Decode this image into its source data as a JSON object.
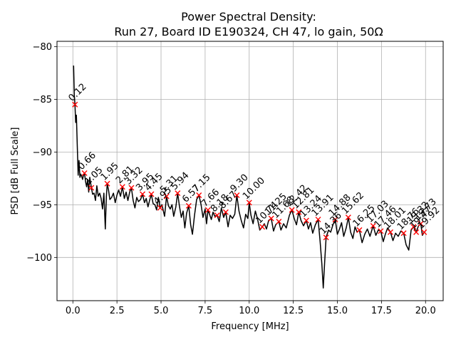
{
  "chart_data": {
    "type": "line",
    "title_line1": "Power Spectral Density:",
    "title_line2": "Run 27, Board ID E190324, CH 47, lo gain, 50Ω",
    "xlabel": "Frequency [MHz]",
    "ylabel": "PSD [dB Full Scale]",
    "xlim": [
      -0.9,
      21.0
    ],
    "ylim": [
      -104.1,
      -79.5
    ],
    "x_ticks": [
      0.0,
      2.5,
      5.0,
      7.5,
      10.0,
      12.5,
      15.0,
      17.5,
      20.0
    ],
    "x_tick_labels": [
      "0.0",
      "2.5",
      "5.0",
      "7.5",
      "10.0",
      "12.5",
      "15.0",
      "17.5",
      "20.0"
    ],
    "y_ticks": [
      -80,
      -85,
      -90,
      -95,
      -100
    ],
    "y_tick_labels": [
      "−80",
      "−85",
      "−90",
      "−95",
      "−100"
    ],
    "grid": true,
    "series": [
      {
        "color": "#000000",
        "points": [
          [
            0.04,
            -81.8
          ],
          [
            0.08,
            -84.6
          ],
          [
            0.12,
            -85.5
          ],
          [
            0.16,
            -87.2
          ],
          [
            0.2,
            -86.5
          ],
          [
            0.25,
            -89.5
          ],
          [
            0.3,
            -92.2
          ],
          [
            0.35,
            -90.8
          ],
          [
            0.4,
            -92.4
          ],
          [
            0.45,
            -92.1
          ],
          [
            0.5,
            -92.3
          ],
          [
            0.55,
            -92.6
          ],
          [
            0.6,
            -92.2
          ],
          [
            0.66,
            -92.0
          ],
          [
            0.72,
            -92.8
          ],
          [
            0.78,
            -93.3
          ],
          [
            0.84,
            -92.6
          ],
          [
            0.9,
            -93.8
          ],
          [
            0.96,
            -92.4
          ],
          [
            1.05,
            -93.4
          ],
          [
            1.12,
            -94.0
          ],
          [
            1.2,
            -93.9
          ],
          [
            1.28,
            -94.6
          ],
          [
            1.36,
            -93.2
          ],
          [
            1.44,
            -94.2
          ],
          [
            1.52,
            -93.9
          ],
          [
            1.6,
            -94.4
          ],
          [
            1.68,
            -95.4
          ],
          [
            1.76,
            -93.9
          ],
          [
            1.84,
            -97.3
          ],
          [
            1.9,
            -94.2
          ],
          [
            1.95,
            -93.0
          ],
          [
            2.02,
            -93.6
          ],
          [
            2.1,
            -94.5
          ],
          [
            2.2,
            -94.3
          ],
          [
            2.3,
            -93.9
          ],
          [
            2.4,
            -94.8
          ],
          [
            2.5,
            -94.1
          ],
          [
            2.6,
            -93.6
          ],
          [
            2.7,
            -94.2
          ],
          [
            2.81,
            -93.3
          ],
          [
            2.92,
            -94.4
          ],
          [
            3.02,
            -93.8
          ],
          [
            3.12,
            -94.6
          ],
          [
            3.22,
            -93.8
          ],
          [
            3.32,
            -93.4
          ],
          [
            3.42,
            -94.6
          ],
          [
            3.52,
            -95.3
          ],
          [
            3.62,
            -94.3
          ],
          [
            3.72,
            -94.7
          ],
          [
            3.84,
            -94.5
          ],
          [
            3.95,
            -94.0
          ],
          [
            4.06,
            -94.8
          ],
          [
            4.16,
            -94.4
          ],
          [
            4.26,
            -95.2
          ],
          [
            4.35,
            -94.6
          ],
          [
            4.45,
            -94.0
          ],
          [
            4.55,
            -94.9
          ],
          [
            4.65,
            -95.0
          ],
          [
            4.75,
            -95.5
          ],
          [
            4.85,
            -94.3
          ],
          [
            4.95,
            -95.3
          ],
          [
            5.05,
            -95.0
          ],
          [
            5.2,
            -96.1
          ],
          [
            5.31,
            -94.2
          ],
          [
            5.42,
            -95.1
          ],
          [
            5.52,
            -95.4
          ],
          [
            5.62,
            -95.0
          ],
          [
            5.72,
            -96.1
          ],
          [
            5.84,
            -95.2
          ],
          [
            5.94,
            -93.9
          ],
          [
            6.05,
            -95.2
          ],
          [
            6.15,
            -96.2
          ],
          [
            6.25,
            -95.6
          ],
          [
            6.35,
            -97.2
          ],
          [
            6.45,
            -95.8
          ],
          [
            6.57,
            -95.1
          ],
          [
            6.68,
            -96.9
          ],
          [
            6.78,
            -97.8
          ],
          [
            6.9,
            -96.0
          ],
          [
            7.02,
            -94.5
          ],
          [
            7.15,
            -94.1
          ],
          [
            7.27,
            -95.0
          ],
          [
            7.38,
            -96.2
          ],
          [
            7.5,
            -95.4
          ],
          [
            7.58,
            -96.8
          ],
          [
            7.66,
            -95.5
          ],
          [
            7.75,
            -95.9
          ],
          [
            7.85,
            -96.4
          ],
          [
            7.95,
            -95.7
          ],
          [
            8.05,
            -96.1
          ],
          [
            8.18,
            -96.0
          ],
          [
            8.3,
            -96.6
          ],
          [
            8.42,
            -95.3
          ],
          [
            8.55,
            -96.2
          ],
          [
            8.67,
            -95.7
          ],
          [
            8.8,
            -97.1
          ],
          [
            8.92,
            -96.0
          ],
          [
            9.05,
            -96.3
          ],
          [
            9.18,
            -95.9
          ],
          [
            9.3,
            -94.1
          ],
          [
            9.42,
            -95.6
          ],
          [
            9.55,
            -96.5
          ],
          [
            9.68,
            -97.2
          ],
          [
            9.8,
            -95.9
          ],
          [
            9.92,
            -96.3
          ],
          [
            10.0,
            -94.8
          ],
          [
            10.1,
            -96.0
          ],
          [
            10.22,
            -96.8
          ],
          [
            10.35,
            -95.6
          ],
          [
            10.48,
            -96.4
          ],
          [
            10.6,
            -97.4
          ],
          [
            10.74,
            -97.1
          ],
          [
            10.86,
            -96.8
          ],
          [
            10.98,
            -97.3
          ],
          [
            11.1,
            -96.5
          ],
          [
            11.25,
            -96.3
          ],
          [
            11.38,
            -97.5
          ],
          [
            11.5,
            -96.9
          ],
          [
            11.68,
            -96.6
          ],
          [
            11.8,
            -97.4
          ],
          [
            11.95,
            -96.8
          ],
          [
            12.1,
            -97.2
          ],
          [
            12.28,
            -96.0
          ],
          [
            12.42,
            -95.5
          ],
          [
            12.55,
            -96.3
          ],
          [
            12.68,
            -96.9
          ],
          [
            12.81,
            -95.7
          ],
          [
            12.94,
            -96.5
          ],
          [
            13.08,
            -97.0
          ],
          [
            13.24,
            -96.5
          ],
          [
            13.36,
            -97.3
          ],
          [
            13.48,
            -96.7
          ],
          [
            13.6,
            -97.7
          ],
          [
            13.75,
            -96.9
          ],
          [
            13.91,
            -96.4
          ],
          [
            14.02,
            -98.5
          ],
          [
            14.12,
            -100.6
          ],
          [
            14.2,
            -102.9
          ],
          [
            14.28,
            -100.4
          ],
          [
            14.36,
            -98.1
          ],
          [
            14.5,
            -97.4
          ],
          [
            14.62,
            -97.6
          ],
          [
            14.75,
            -96.9
          ],
          [
            14.88,
            -96.4
          ],
          [
            15.0,
            -97.8
          ],
          [
            15.12,
            -97.3
          ],
          [
            15.24,
            -96.7
          ],
          [
            15.36,
            -98.0
          ],
          [
            15.5,
            -97.2
          ],
          [
            15.62,
            -96.2
          ],
          [
            15.75,
            -97.6
          ],
          [
            15.88,
            -98.2
          ],
          [
            16.0,
            -97.1
          ],
          [
            16.12,
            -97.6
          ],
          [
            16.25,
            -97.4
          ],
          [
            16.4,
            -98.6
          ],
          [
            16.55,
            -97.8
          ],
          [
            16.7,
            -97.3
          ],
          [
            16.85,
            -98.0
          ],
          [
            17.03,
            -97.0
          ],
          [
            17.18,
            -97.9
          ],
          [
            17.32,
            -97.4
          ],
          [
            17.46,
            -97.5
          ],
          [
            17.6,
            -98.5
          ],
          [
            17.72,
            -97.8
          ],
          [
            17.85,
            -97.2
          ],
          [
            18.01,
            -97.6
          ],
          [
            18.15,
            -98.4
          ],
          [
            18.3,
            -97.7
          ],
          [
            18.45,
            -98.0
          ],
          [
            18.6,
            -97.5
          ],
          [
            18.76,
            -97.7
          ],
          [
            18.9,
            -98.8
          ],
          [
            19.05,
            -99.3
          ],
          [
            19.18,
            -97.4
          ],
          [
            19.32,
            -97.1
          ],
          [
            19.47,
            -97.6
          ],
          [
            19.6,
            -97.0
          ],
          [
            19.73,
            -96.8
          ],
          [
            19.82,
            -97.9
          ],
          [
            19.92,
            -97.6
          ]
        ]
      }
    ],
    "peaks": [
      {
        "x": 0.12,
        "y": -85.5,
        "label": "0.12"
      },
      {
        "x": 0.66,
        "y": -92.0,
        "label": "0.66"
      },
      {
        "x": 1.05,
        "y": -93.4,
        "label": "1.05"
      },
      {
        "x": 1.95,
        "y": -93.0,
        "label": "1.95"
      },
      {
        "x": 2.81,
        "y": -93.3,
        "label": "2.81"
      },
      {
        "x": 3.32,
        "y": -93.4,
        "label": "3.32"
      },
      {
        "x": 3.95,
        "y": -94.0,
        "label": "3.95"
      },
      {
        "x": 4.45,
        "y": -94.0,
        "label": "4.45"
      },
      {
        "x": 4.95,
        "y": -95.3,
        "label": "4.95"
      },
      {
        "x": 5.31,
        "y": -94.2,
        "label": "5.31"
      },
      {
        "x": 5.94,
        "y": -93.9,
        "label": "5.94"
      },
      {
        "x": 6.57,
        "y": -95.1,
        "label": "6.57"
      },
      {
        "x": 7.15,
        "y": -94.1,
        "label": "7.15"
      },
      {
        "x": 7.66,
        "y": -95.5,
        "label": "7.66"
      },
      {
        "x": 8.18,
        "y": -96.0,
        "label": "8.18"
      },
      {
        "x": 8.67,
        "y": -95.7,
        "label": "8.67"
      },
      {
        "x": 9.3,
        "y": -94.1,
        "label": "9.30"
      },
      {
        "x": 10.0,
        "y": -94.8,
        "label": "10.00"
      },
      {
        "x": 10.74,
        "y": -97.1,
        "label": "10.74"
      },
      {
        "x": 11.25,
        "y": -96.3,
        "label": "11.25"
      },
      {
        "x": 11.68,
        "y": -96.6,
        "label": "11.68"
      },
      {
        "x": 12.42,
        "y": -95.5,
        "label": "12.42"
      },
      {
        "x": 12.81,
        "y": -95.7,
        "label": "12.81"
      },
      {
        "x": 13.24,
        "y": -96.5,
        "label": "13.24"
      },
      {
        "x": 13.91,
        "y": -96.4,
        "label": "13.91"
      },
      {
        "x": 14.36,
        "y": -98.1,
        "label": "14.36"
      },
      {
        "x": 14.88,
        "y": -96.4,
        "label": "14.88"
      },
      {
        "x": 15.62,
        "y": -96.2,
        "label": "15.62"
      },
      {
        "x": 16.25,
        "y": -97.4,
        "label": "16.25"
      },
      {
        "x": 17.03,
        "y": -97.0,
        "label": "17.03"
      },
      {
        "x": 17.46,
        "y": -97.5,
        "label": "17.46"
      },
      {
        "x": 18.01,
        "y": -97.6,
        "label": "18.01"
      },
      {
        "x": 18.76,
        "y": -97.7,
        "label": "18.76"
      },
      {
        "x": 19.32,
        "y": -97.1,
        "label": "19.32"
      },
      {
        "x": 19.47,
        "y": -97.6,
        "label": "19.47"
      },
      {
        "x": 19.73,
        "y": -96.8,
        "label": "19.73"
      },
      {
        "x": 19.92,
        "y": -97.6,
        "label": "19.92"
      }
    ],
    "colors": {
      "line": "#000000",
      "peak_marker": "#ff0000",
      "grid": "#b0b0b0"
    }
  }
}
